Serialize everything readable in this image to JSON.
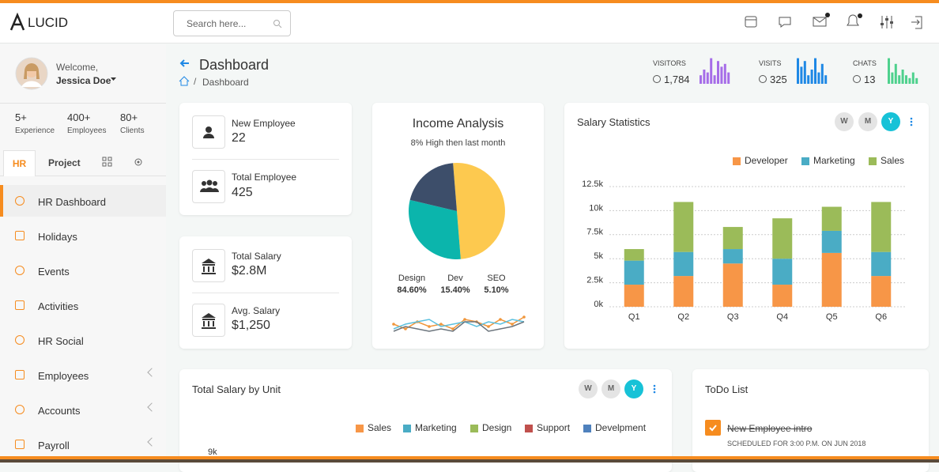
{
  "header": {
    "logo": "LUCID",
    "search_placeholder": "Search here..."
  },
  "sidebar": {
    "welcome": "Welcome,",
    "user": "Jessica Doe",
    "stats": [
      {
        "value": "5+",
        "label": "Experience"
      },
      {
        "value": "400+",
        "label": "Employees"
      },
      {
        "value": "80+",
        "label": "Clients"
      }
    ],
    "tabs": [
      "HR",
      "Project"
    ],
    "menu": [
      "HR Dashboard",
      "Holidays",
      "Events",
      "Activities",
      "HR Social",
      "Employees",
      "Accounts",
      "Payroll"
    ]
  },
  "page": {
    "title": "Dashboard",
    "breadcrumb": "Dashboard"
  },
  "top_stats": [
    {
      "label": "VISITORS",
      "value": "1,784",
      "chart": {
        "type": "bar",
        "color": "#a66de8",
        "ylim": [
          0,
          10
        ],
        "values": [
          3,
          5,
          4,
          9,
          3,
          8,
          6,
          7,
          4
        ]
      }
    },
    {
      "label": "VISITS",
      "value": "325",
      "chart": {
        "type": "bar",
        "color": "#1e88e5",
        "ylim": [
          0,
          10
        ],
        "values": [
          9,
          6,
          8,
          3,
          5,
          9,
          4,
          7,
          3
        ]
      }
    },
    {
      "label": "CHATS",
      "value": "13",
      "chart": {
        "type": "bar",
        "color": "#4ed18d",
        "ylim": [
          0,
          10
        ],
        "values": [
          9,
          4,
          7,
          3,
          5,
          3,
          2,
          4,
          2
        ]
      }
    }
  ],
  "cards": [
    {
      "label": "New Employee",
      "value": "22"
    },
    {
      "label": "Total Employee",
      "value": "425"
    },
    {
      "label": "Total Salary",
      "value": "$2.8M"
    },
    {
      "label": "Avg. Salary",
      "value": "$1,250"
    }
  ],
  "income": {
    "title": "Income Analysis",
    "subtitle": "8% High then last month",
    "pie": {
      "type": "pie",
      "values": [
        50,
        30,
        20
      ],
      "colors": [
        "#fdc94f",
        "#0bb5ac",
        "#3d4e6a"
      ]
    },
    "stats": [
      {
        "name": "Design",
        "value": "84.60%"
      },
      {
        "name": "Dev",
        "value": "15.40%"
      },
      {
        "name": "SEO",
        "value": "5.10%"
      }
    ],
    "sparkline": {
      "type": "line",
      "ylim": [
        0,
        10
      ],
      "series": [
        {
          "color": "#f0963b",
          "values": [
            5,
            3,
            6,
            4,
            5,
            3,
            7,
            6,
            4,
            7,
            5,
            8
          ]
        },
        {
          "color": "#5bc0de",
          "values": [
            3,
            5,
            6,
            7,
            4,
            5,
            6,
            4,
            6,
            5,
            7,
            6
          ]
        },
        {
          "color": "#6c757d",
          "values": [
            2,
            4,
            3,
            2,
            3,
            2,
            6,
            6,
            2,
            3,
            4,
            6
          ]
        }
      ]
    }
  },
  "salary_stats": {
    "type": "bar",
    "stacked": true,
    "title": "Salary Statistics",
    "periods": [
      "W",
      "M",
      "Y"
    ],
    "categories": [
      "Q1",
      "Q2",
      "Q3",
      "Q4",
      "Q5",
      "Q6"
    ],
    "series": [
      {
        "name": "Developer",
        "color": "#f79647",
        "values": [
          2300,
          3200,
          4500,
          2300,
          5600,
          3200
        ]
      },
      {
        "name": "Marketing",
        "color": "#4aacc5",
        "values": [
          2500,
          2500,
          1500,
          2700,
          2300,
          2500
        ]
      },
      {
        "name": "Sales",
        "color": "#9bbb59",
        "values": [
          1200,
          5200,
          2300,
          4200,
          2500,
          5200
        ]
      }
    ],
    "ylim": [
      0,
      12500
    ],
    "yticks": [
      {
        "value": 0,
        "label": "0k"
      },
      {
        "value": 2500,
        "label": "2.5k"
      },
      {
        "value": 5000,
        "label": "5k"
      },
      {
        "value": 7500,
        "label": "7.5k"
      },
      {
        "value": 10000,
        "label": "10k"
      },
      {
        "value": 12500,
        "label": "12.5k"
      }
    ],
    "grid": true
  },
  "salary_by_unit": {
    "title": "Total Salary by Unit",
    "periods": [
      "W",
      "M",
      "Y"
    ],
    "legend": [
      {
        "name": "Sales",
        "color": "#f79647"
      },
      {
        "name": "Marketing",
        "color": "#4aacc5"
      },
      {
        "name": "Design",
        "color": "#9bbb59"
      },
      {
        "name": "Support",
        "color": "#c0504d"
      },
      {
        "name": "Develpment",
        "color": "#4f81bd"
      }
    ],
    "yticks": [
      {
        "value": 9000,
        "label": "9k"
      }
    ]
  },
  "todo": {
    "title": "ToDo List",
    "items": [
      {
        "text": "New Employee intro",
        "note": "SCHEDULED FOR 3:00 P.M. ON JUN 2018"
      }
    ]
  }
}
